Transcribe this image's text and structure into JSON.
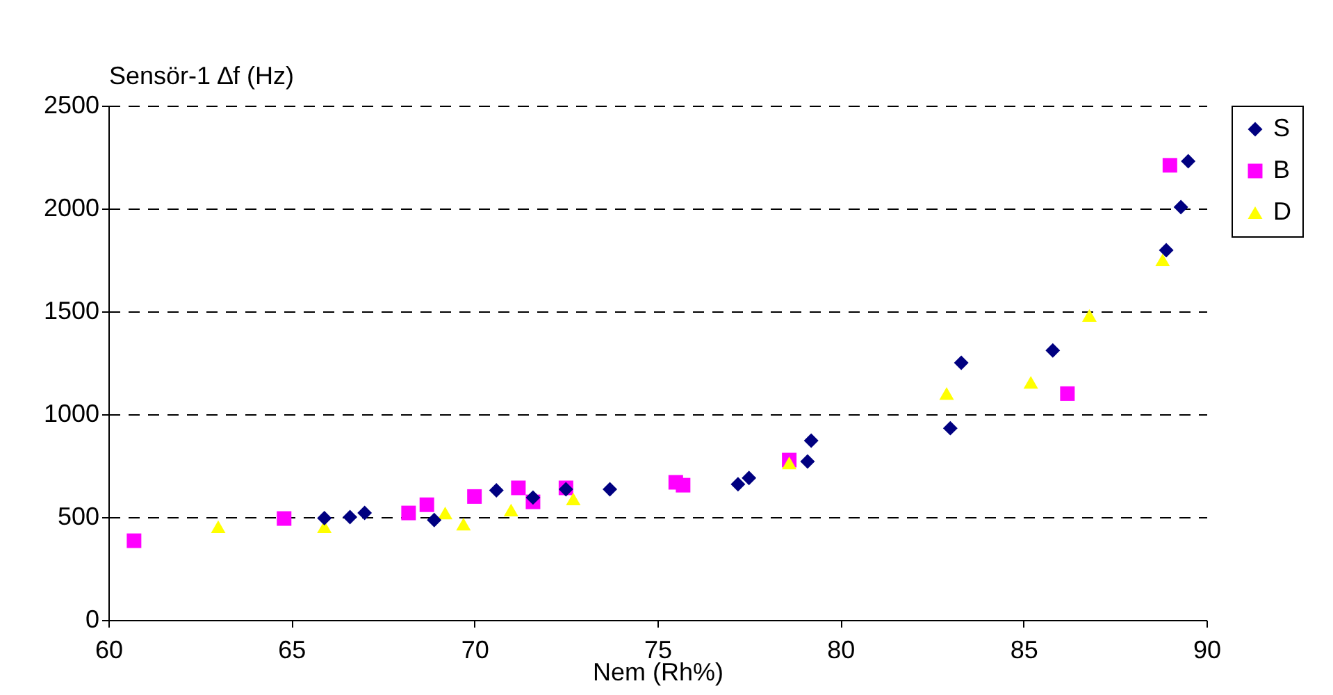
{
  "chart_data": {
    "type": "scatter",
    "ylabel": "Sensör-1 ∆f (Hz)",
    "xlabel": "Nem (Rh%)",
    "xlim": [
      60,
      90
    ],
    "xticks": [
      60,
      65,
      70,
      75,
      80,
      85,
      90
    ],
    "ylim": [
      0,
      2500
    ],
    "yticks": [
      0,
      500,
      1000,
      1500,
      2000,
      2500
    ],
    "grid": "y",
    "legend": "right",
    "series": [
      {
        "name": "S",
        "color": "#000080",
        "marker": "diamond",
        "x": [
          65.9,
          66.6,
          67.0,
          68.9,
          70.6,
          71.6,
          72.5,
          73.7,
          77.2,
          77.5,
          79.1,
          79.2,
          83.0,
          83.3,
          85.8,
          88.9,
          89.3,
          89.5
        ],
        "values": [
          495,
          500,
          520,
          486,
          630,
          595,
          635,
          635,
          660,
          690,
          770,
          872,
          932,
          1250,
          1310,
          1797,
          2007,
          2230
        ]
      },
      {
        "name": "B",
        "color": "#ff00ff",
        "marker": "square",
        "x": [
          60.7,
          64.8,
          68.2,
          68.7,
          70.0,
          71.2,
          71.6,
          72.5,
          75.5,
          75.7,
          78.6,
          86.2,
          89.0
        ],
        "values": [
          385,
          493,
          520,
          560,
          600,
          642,
          574,
          642,
          669,
          655,
          777,
          1100,
          2210
        ]
      },
      {
        "name": "D",
        "color": "#ffff00",
        "marker": "triangle",
        "x": [
          63.0,
          65.9,
          69.2,
          69.7,
          71.0,
          72.7,
          78.6,
          82.9,
          85.2,
          86.8,
          88.8
        ],
        "values": [
          453,
          453,
          520,
          466,
          534,
          588,
          763,
          1101,
          1155,
          1480,
          1750
        ]
      }
    ]
  }
}
